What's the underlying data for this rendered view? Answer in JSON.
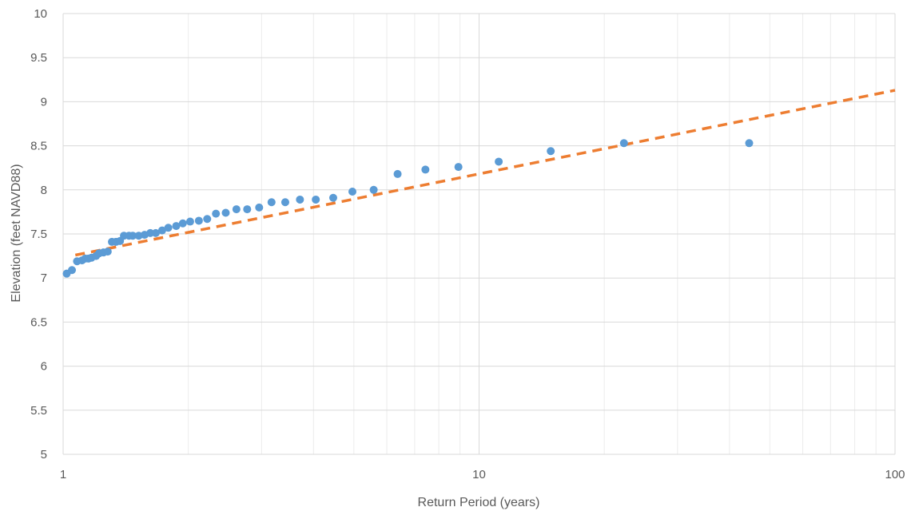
{
  "chart_data": {
    "type": "scatter",
    "title": "",
    "xlabel": "Return Period (years)",
    "ylabel": "Elevation (feet NAVD88)",
    "x_scale": "log",
    "xlim": [
      1,
      100
    ],
    "ylim": [
      5,
      10
    ],
    "x_ticks": [
      "1",
      "10",
      "100"
    ],
    "y_ticks": [
      "5",
      "5.5",
      "6",
      "6.5",
      "7",
      "7.5",
      "8",
      "8.5",
      "9",
      "9.5",
      "10"
    ],
    "grid": true,
    "legend": "none",
    "series": [
      {
        "kind": "points",
        "color": "#5b9bd5",
        "x": [
          1.02,
          1.05,
          1.08,
          1.11,
          1.13,
          1.15,
          1.17,
          1.2,
          1.22,
          1.25,
          1.28,
          1.31,
          1.34,
          1.37,
          1.4,
          1.44,
          1.47,
          1.52,
          1.57,
          1.62,
          1.67,
          1.73,
          1.79,
          1.87,
          1.94,
          2.02,
          2.12,
          2.22,
          2.33,
          2.46,
          2.61,
          2.77,
          2.96,
          3.17,
          3.42,
          3.71,
          4.05,
          4.46,
          4.96,
          5.58,
          6.37,
          7.43,
          8.92,
          11.15,
          14.87,
          22.3,
          44.6
        ],
        "y": [
          7.05,
          7.09,
          7.19,
          7.2,
          7.22,
          7.22,
          7.23,
          7.25,
          7.28,
          7.29,
          7.3,
          7.41,
          7.41,
          7.42,
          7.48,
          7.48,
          7.48,
          7.48,
          7.49,
          7.51,
          7.51,
          7.54,
          7.57,
          7.59,
          7.62,
          7.64,
          7.65,
          7.67,
          7.73,
          7.74,
          7.78,
          7.78,
          7.8,
          7.86,
          7.86,
          7.89,
          7.89,
          7.91,
          7.98,
          8.0,
          8.18,
          8.23,
          8.26,
          8.32,
          8.44,
          8.53,
          8.53
        ]
      },
      {
        "kind": "trendline",
        "color": "#ed7d31",
        "line_style": "dashed",
        "x": [
          1.07,
          100
        ],
        "y": [
          7.26,
          9.13
        ]
      }
    ]
  }
}
